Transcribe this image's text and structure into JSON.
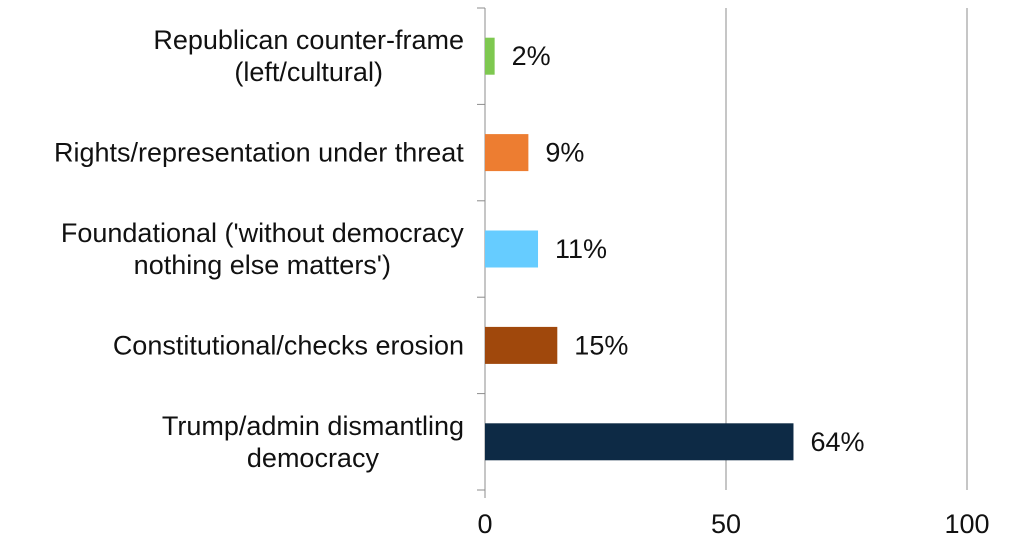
{
  "chart_data": {
    "type": "bar",
    "orientation": "horizontal",
    "title": "",
    "xlabel": "",
    "ylabel": "",
    "categories": [
      [
        "Republican counter-frame",
        "(left/cultural)"
      ],
      [
        "Rights/representation under threat"
      ],
      [
        "Foundational ('without democracy",
        "nothing else matters')"
      ],
      [
        "Constitutional/checks erosion"
      ],
      [
        "Trump/admin dismantling",
        "democracy"
      ]
    ],
    "values": [
      2,
      9,
      11,
      15,
      64
    ],
    "value_labels": [
      "2%",
      "9%",
      "11%",
      "15%",
      "64%"
    ],
    "colors": [
      "#7ec850",
      "#ed7d31",
      "#66ccff",
      "#a0480c",
      "#0d2a45"
    ],
    "xlim": [
      0,
      100
    ],
    "xticks": [
      0,
      50,
      100
    ],
    "grid": "vertical major gridlines",
    "legend": "none"
  }
}
